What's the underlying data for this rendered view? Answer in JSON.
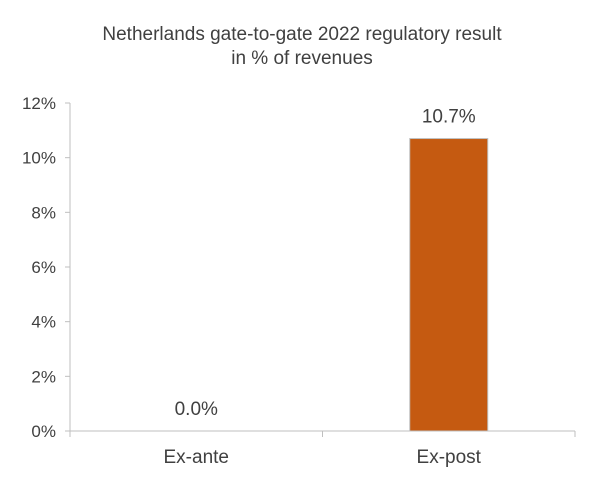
{
  "chart_data": {
    "type": "bar",
    "title": [
      "Netherlands  gate-to-gate 2022 regulatory result",
      "in % of revenues"
    ],
    "xlabel": "",
    "ylabel": "",
    "categories": [
      "Ex-ante",
      "Ex-post"
    ],
    "values": [
      0.0,
      10.7
    ],
    "data_labels": [
      "0.0%",
      "10.7%"
    ],
    "ylim": [
      0,
      12
    ],
    "y_ticks": [
      0,
      2,
      4,
      6,
      8,
      10,
      12
    ],
    "y_tick_labels": [
      "0%",
      "2%",
      "4%",
      "6%",
      "8%",
      "10%",
      "12%"
    ],
    "grid": false,
    "legend": "none",
    "bar_color": "#C55A11",
    "bar_edge_color": "#BFBFBF",
    "axis_color": "#BFBFBF",
    "text_color": "#404040"
  }
}
